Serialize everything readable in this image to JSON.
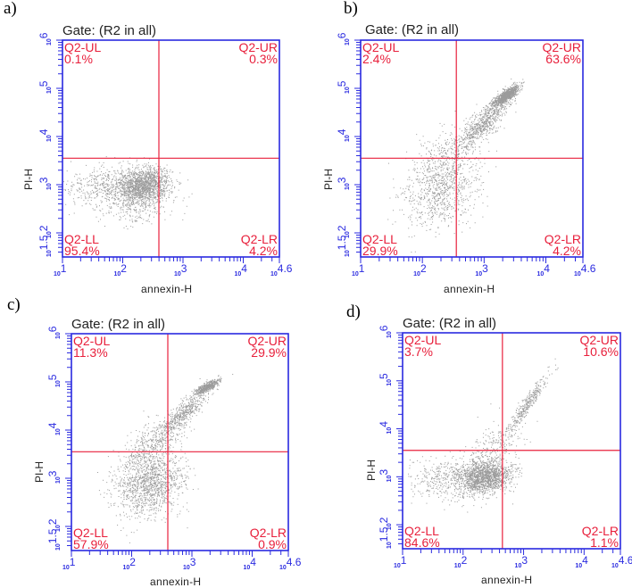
{
  "figure": {
    "axis_color": "#2a2ae0",
    "quad_color": "#e8203c",
    "dot_color": "#222222"
  },
  "panels": [
    {
      "letter": "a)",
      "gate_title": "Gate: (R2 in all)",
      "xlabel": "annexin-H",
      "ylabel": "PI-H",
      "quadrants": {
        "UL": {
          "name": "Q2-UL",
          "pct": "0.1%"
        },
        "UR": {
          "name": "Q2-UR",
          "pct": "0.3%"
        },
        "LL": {
          "name": "Q2-LL",
          "pct": "95.4%"
        },
        "LR": {
          "name": "Q2-LR",
          "pct": "4.2%"
        }
      }
    },
    {
      "letter": "b)",
      "gate_title": "Gate: (R2 in all)",
      "xlabel": "annexin-H",
      "ylabel": "PI-H",
      "quadrants": {
        "UL": {
          "name": "Q2-UL",
          "pct": "2.4%"
        },
        "UR": {
          "name": "Q2-UR",
          "pct": "63.6%"
        },
        "LL": {
          "name": "Q2-LL",
          "pct": "29.9%"
        },
        "LR": {
          "name": "Q2-LR",
          "pct": "4.2%"
        }
      }
    },
    {
      "letter": "c)",
      "gate_title": "Gate: (R2 in all)",
      "xlabel": "annexin-H",
      "ylabel": "PI-H",
      "quadrants": {
        "UL": {
          "name": "Q2-UL",
          "pct": "11.3%"
        },
        "UR": {
          "name": "Q2-UR",
          "pct": "29.9%"
        },
        "LL": {
          "name": "Q2-LL",
          "pct": "57.9%"
        },
        "LR": {
          "name": "Q2-LR",
          "pct": "0.9%"
        }
      }
    },
    {
      "letter": "d)",
      "gate_title": "Gate: (R2 in all)",
      "xlabel": "annexin-H",
      "ylabel": "PI-H",
      "quadrants": {
        "UL": {
          "name": "Q2-UL",
          "pct": "3.7%"
        },
        "UR": {
          "name": "Q2-UR",
          "pct": "10.6%"
        },
        "LL": {
          "name": "Q2-LL",
          "pct": "84.6%"
        },
        "LR": {
          "name": "Q2-LR",
          "pct": "1.1%"
        }
      }
    }
  ],
  "chart_data": [
    {
      "type": "scatter",
      "panel": "a",
      "title": "Gate: (R2 in all)",
      "xlabel": "annexin-H",
      "ylabel": "PI-H",
      "xscale": "log",
      "yscale": "log",
      "xlim": [
        10,
        39810
      ],
      "ylim": [
        31.6,
        1000000
      ],
      "x_tick_labels": [
        "10^1",
        "10^2",
        "10^3",
        "10^4",
        "10^4.6"
      ],
      "y_tick_labels": [
        "10^1.5",
        "10^2",
        "10^3",
        "10^4",
        "10^5",
        "10^6"
      ],
      "quadrant_gate": {
        "x_log10": 2.6,
        "y_log10": 3.55
      },
      "quadrants": {
        "Q2-UL": 0.1,
        "Q2-UR": 0.3,
        "Q2-LL": 95.4,
        "Q2-LR": 4.2
      },
      "clusters": [
        {
          "cx": 2.35,
          "cy": 3.0,
          "sx": 0.22,
          "sy": 0.18,
          "n": 1500,
          "rho": 0.1
        },
        {
          "cx": 1.75,
          "cy": 2.95,
          "sx": 0.35,
          "sy": 0.22,
          "n": 500,
          "rho": 0.0
        },
        {
          "cx": 2.2,
          "cy": 2.55,
          "sx": 0.25,
          "sy": 0.2,
          "n": 220,
          "rho": 0.0
        }
      ]
    },
    {
      "type": "scatter",
      "panel": "b",
      "title": "Gate: (R2 in all)",
      "xlabel": "annexin-H",
      "ylabel": "PI-H",
      "xscale": "log",
      "yscale": "log",
      "xlim": [
        10,
        39810
      ],
      "ylim": [
        31.6,
        1000000
      ],
      "x_tick_labels": [
        "10^1",
        "10^2",
        "10^3",
        "10^4",
        "10^4.6"
      ],
      "y_tick_labels": [
        "10^1.5",
        "10^2",
        "10^3",
        "10^4",
        "10^5",
        "10^6"
      ],
      "quadrant_gate": {
        "x_log10": 2.55,
        "y_log10": 3.55
      },
      "quadrants": {
        "Q2-UL": 2.4,
        "Q2-UR": 63.6,
        "Q2-LL": 29.9,
        "Q2-LR": 4.2
      },
      "clusters": [
        {
          "cx": 3.35,
          "cy": 4.85,
          "sx": 0.1,
          "sy": 0.1,
          "n": 900,
          "rho": 0.8
        },
        {
          "cx": 3.0,
          "cy": 4.3,
          "sx": 0.22,
          "sy": 0.3,
          "n": 700,
          "rho": 0.85
        },
        {
          "cx": 2.3,
          "cy": 2.9,
          "sx": 0.3,
          "sy": 0.4,
          "n": 800,
          "rho": 0.3
        },
        {
          "cx": 2.4,
          "cy": 3.6,
          "sx": 0.3,
          "sy": 0.35,
          "n": 300,
          "rho": 0.5
        }
      ]
    },
    {
      "type": "scatter",
      "panel": "c",
      "title": "Gate: (R2 in all)",
      "xlabel": "annexin-H",
      "ylabel": "PI-H",
      "xscale": "log",
      "yscale": "log",
      "xlim": [
        10,
        39810
      ],
      "ylim": [
        31.6,
        1000000
      ],
      "x_tick_labels": [
        "10^1",
        "10^2",
        "10^3",
        "10^4",
        "10^4.6"
      ],
      "y_tick_labels": [
        "10^1.5",
        "10^2",
        "10^3",
        "10^4",
        "10^5",
        "10^6"
      ],
      "quadrant_gate": {
        "x_log10": 2.6,
        "y_log10": 3.55
      },
      "quadrants": {
        "Q2-UL": 11.3,
        "Q2-UR": 29.9,
        "Q2-LL": 57.9,
        "Q2-LR": 0.9
      },
      "clusters": [
        {
          "cx": 3.25,
          "cy": 4.9,
          "sx": 0.1,
          "sy": 0.08,
          "n": 500,
          "rho": 0.8
        },
        {
          "cx": 2.85,
          "cy": 4.35,
          "sx": 0.2,
          "sy": 0.25,
          "n": 500,
          "rho": 0.85
        },
        {
          "cx": 2.3,
          "cy": 2.9,
          "sx": 0.28,
          "sy": 0.35,
          "n": 1300,
          "rho": 0.2
        },
        {
          "cx": 2.35,
          "cy": 3.7,
          "sx": 0.25,
          "sy": 0.3,
          "n": 400,
          "rho": 0.6
        }
      ]
    },
    {
      "type": "scatter",
      "panel": "d",
      "title": "Gate: (R2 in all)",
      "xlabel": "annexin-H",
      "ylabel": "PI-H",
      "xscale": "log",
      "yscale": "log",
      "xlim": [
        10,
        39810
      ],
      "ylim": [
        31.6,
        1000000
      ],
      "x_tick_labels": [
        "10^1",
        "10^2",
        "10^3",
        "10^4",
        "10^4.6"
      ],
      "y_tick_labels": [
        "10^1.5",
        "10^2",
        "10^3",
        "10^4",
        "10^5",
        "10^6"
      ],
      "quadrant_gate": {
        "x_log10": 2.65,
        "y_log10": 3.55
      },
      "quadrants": {
        "Q2-UL": 3.7,
        "Q2-UR": 10.6,
        "Q2-LL": 84.6,
        "Q2-LR": 1.1
      },
      "clusters": [
        {
          "cx": 2.35,
          "cy": 3.0,
          "sx": 0.22,
          "sy": 0.17,
          "n": 1500,
          "rho": 0.15
        },
        {
          "cx": 1.8,
          "cy": 2.95,
          "sx": 0.35,
          "sy": 0.22,
          "n": 450,
          "rho": 0.0
        },
        {
          "cx": 3.05,
          "cy": 4.5,
          "sx": 0.17,
          "sy": 0.3,
          "n": 350,
          "rho": 0.95
        },
        {
          "cx": 2.5,
          "cy": 3.6,
          "sx": 0.25,
          "sy": 0.3,
          "n": 250,
          "rho": 0.5
        }
      ]
    }
  ]
}
